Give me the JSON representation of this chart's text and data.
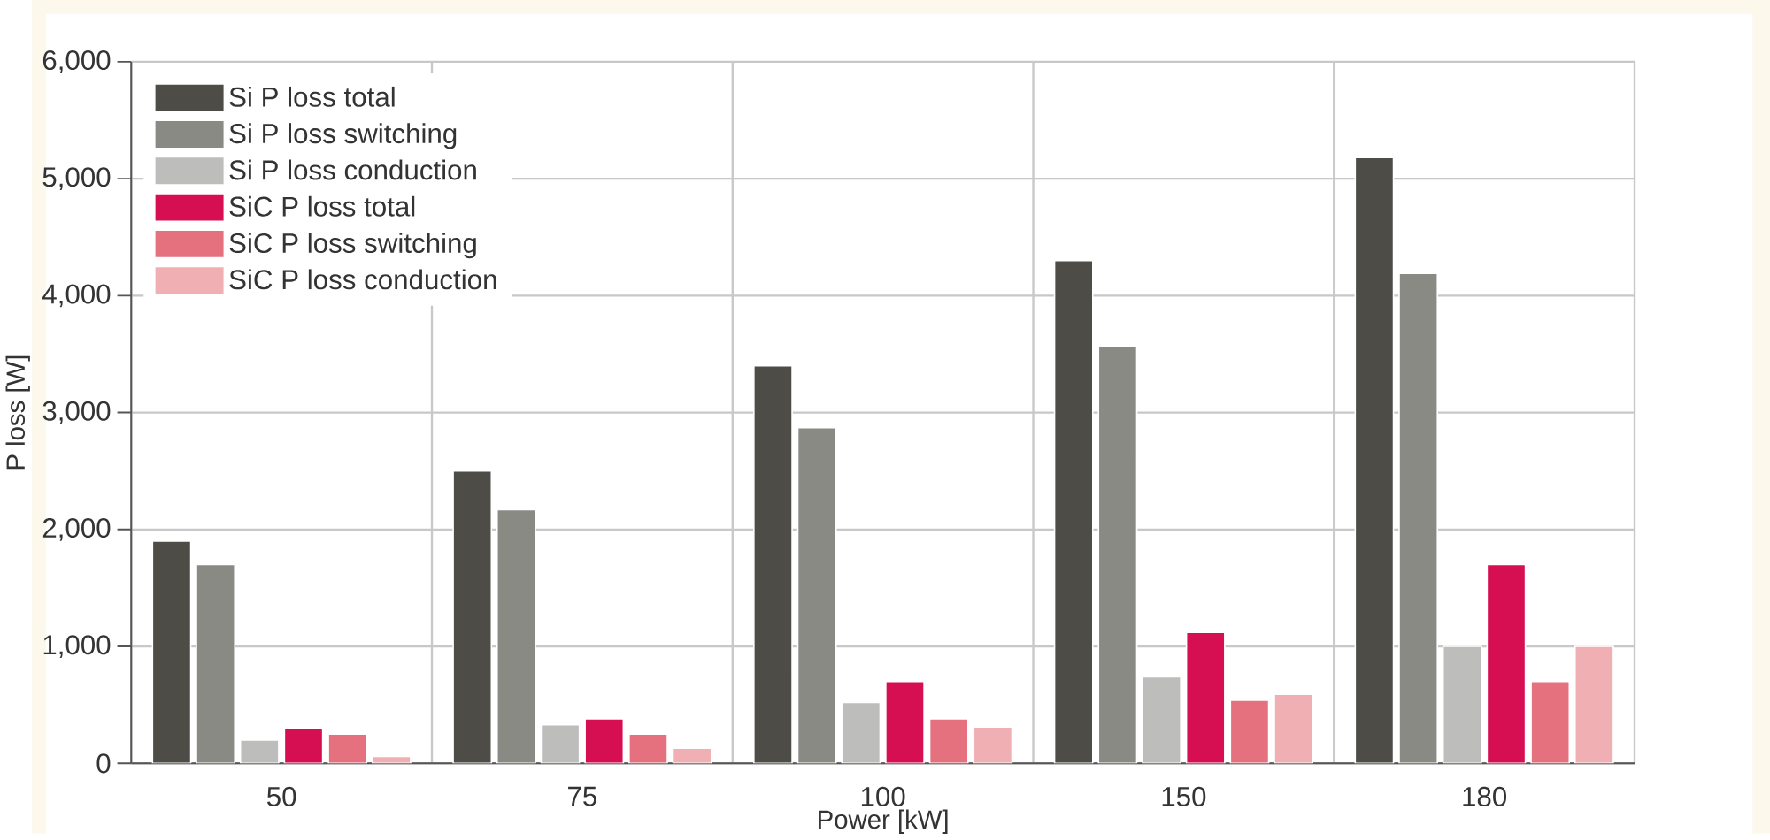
{
  "chart_data": {
    "type": "bar",
    "xlabel": "Power [kW]",
    "ylabel": "P loss [W]",
    "categories": [
      "50",
      "75",
      "100",
      "150",
      "180"
    ],
    "series": [
      {
        "name": "Si P loss total",
        "color": "#4d4c47",
        "values": [
          1900,
          2500,
          3400,
          4300,
          5180
        ]
      },
      {
        "name": "Si P loss switching",
        "color": "#8a8a85",
        "values": [
          1700,
          2170,
          2870,
          3570,
          4190
        ]
      },
      {
        "name": "Si P loss conduction",
        "color": "#bdbdbb",
        "values": [
          200,
          330,
          520,
          740,
          1000
        ]
      },
      {
        "name": "SiC P loss total",
        "color": "#d60f53",
        "values": [
          300,
          380,
          700,
          1120,
          1700
        ]
      },
      {
        "name": "SiC P loss switching",
        "color": "#e5717f",
        "values": [
          250,
          250,
          380,
          540,
          700
        ]
      },
      {
        "name": "SiC P loss conduction",
        "color": "#f0b0b3",
        "values": [
          60,
          130,
          310,
          590,
          1000
        ]
      }
    ],
    "ylim": [
      0,
      6000
    ],
    "yticks": [
      0,
      {
        "value": 1000,
        "label": "1,000"
      },
      {
        "value": 2000,
        "label": "2,000"
      },
      {
        "value": 3000,
        "label": "3,000"
      },
      {
        "value": 4000,
        "label": "4,000"
      },
      {
        "value": 5000,
        "label": "5,000"
      },
      {
        "value": 6000,
        "label": "6,000"
      }
    ],
    "grid": true,
    "legend": "top left"
  }
}
